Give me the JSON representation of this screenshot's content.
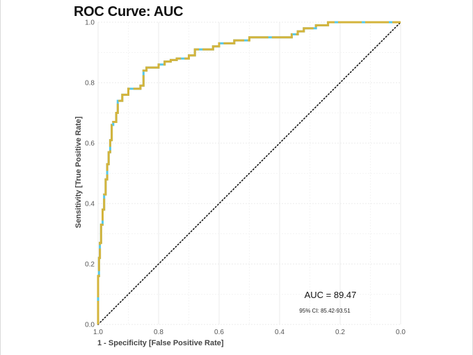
{
  "chart_data": {
    "type": "line",
    "title": "ROC Curve: AUC",
    "xlabel": "1 - Specificity [False Positive Rate]",
    "ylabel": "Sensitivity [True Positive Rate]",
    "x_reversed": true,
    "xlim": [
      1.0,
      0.0
    ],
    "ylim": [
      0.0,
      1.0
    ],
    "x_ticks": [
      "1.0",
      "0.8",
      "0.6",
      "0.4",
      "0.2",
      "0.0"
    ],
    "x_tick_values": [
      1.0,
      0.8,
      0.6,
      0.4,
      0.2,
      0.0
    ],
    "y_ticks": [
      "0.0",
      "0.2",
      "0.4",
      "0.6",
      "0.8",
      "1.0"
    ],
    "y_tick_values": [
      0.0,
      0.2,
      0.4,
      0.6,
      0.8,
      1.0
    ],
    "grid": true,
    "series": [
      {
        "name": "ROC",
        "colors": [
          "#d4b43c",
          "#56c8e8"
        ],
        "specificity": [
          1.0,
          0.997,
          0.994,
          0.99,
          0.985,
          0.98,
          0.975,
          0.97,
          0.965,
          0.96,
          0.955,
          0.95,
          0.945,
          0.94,
          0.935,
          0.93,
          0.92,
          0.91,
          0.9,
          0.89,
          0.875,
          0.86,
          0.85,
          0.84,
          0.83,
          0.82,
          0.8,
          0.78,
          0.76,
          0.74,
          0.72,
          0.7,
          0.68,
          0.66,
          0.64,
          0.62,
          0.6,
          0.55,
          0.52,
          0.5,
          0.48,
          0.46,
          0.44,
          0.4,
          0.36,
          0.34,
          0.32,
          0.3,
          0.28,
          0.26,
          0.24,
          0.22,
          0.2,
          0.15,
          0.1,
          0.0
        ],
        "sensitivity": [
          0.0,
          0.16,
          0.22,
          0.27,
          0.33,
          0.38,
          0.43,
          0.48,
          0.53,
          0.57,
          0.61,
          0.66,
          0.67,
          0.67,
          0.7,
          0.74,
          0.74,
          0.76,
          0.76,
          0.78,
          0.78,
          0.78,
          0.79,
          0.84,
          0.85,
          0.85,
          0.85,
          0.86,
          0.87,
          0.875,
          0.88,
          0.88,
          0.89,
          0.91,
          0.91,
          0.91,
          0.92,
          0.93,
          0.94,
          0.94,
          0.95,
          0.95,
          0.95,
          0.95,
          0.95,
          0.96,
          0.97,
          0.98,
          0.98,
          0.99,
          0.99,
          1.0,
          1.0,
          1.0,
          1.0,
          1.0
        ]
      },
      {
        "name": "Reference",
        "style": "dotted",
        "color": "#111111",
        "specificity": [
          1.0,
          0.0
        ],
        "sensitivity": [
          0.0,
          1.0
        ]
      }
    ],
    "annotations": {
      "auc": "AUC = 89.47",
      "ci": "95% CI: 85.42-93.51"
    }
  }
}
